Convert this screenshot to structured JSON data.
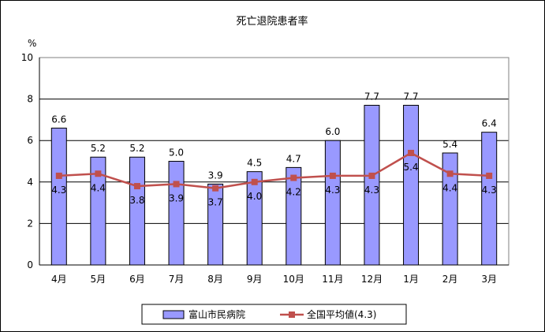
{
  "chart_data": {
    "type": "bar",
    "title": "死亡退院患者率",
    "ylabel": "%",
    "xlabel": "",
    "ylim": [
      0,
      10
    ],
    "y_ticks": [
      "0",
      "2",
      "4",
      "6",
      "8",
      "10"
    ],
    "categories": [
      "4月",
      "5月",
      "6月",
      "7月",
      "8月",
      "9月",
      "10月",
      "11月",
      "12月",
      "1月",
      "2月",
      "3月"
    ],
    "grid": true,
    "legend_position": "bottom",
    "series": [
      {
        "name": "富山市民病院",
        "kind": "bar",
        "color": "#9999ff",
        "values": [
          6.6,
          5.2,
          5.2,
          5.0,
          3.9,
          4.5,
          4.7,
          6.0,
          7.7,
          7.7,
          5.4,
          6.4
        ],
        "labels": [
          "6.6",
          "5.2",
          "5.2",
          "5.0",
          "3.9",
          "4.5",
          "4.7",
          "6.0",
          "7.7",
          "7.7",
          "5.4",
          "6.4"
        ]
      },
      {
        "name": "全国平均値(4.3)",
        "kind": "line",
        "color": "#c0504d",
        "values": [
          4.3,
          4.4,
          3.8,
          3.9,
          3.7,
          4.0,
          4.2,
          4.3,
          4.3,
          5.4,
          4.4,
          4.3
        ],
        "labels": [
          "4.3",
          "4.4",
          "3.8",
          "3.9",
          "3.7",
          "4.0",
          "4.2",
          "4.3",
          "4.3",
          "5.4",
          "4.4",
          "4.3"
        ]
      }
    ]
  }
}
